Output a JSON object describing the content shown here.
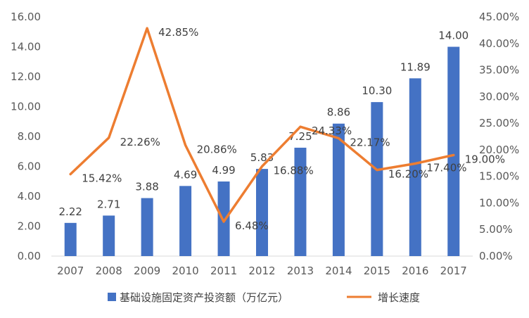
{
  "chart_data": {
    "type": "bar+line",
    "categories": [
      "2007",
      "2008",
      "2009",
      "2010",
      "2011",
      "2012",
      "2013",
      "2014",
      "2015",
      "2016",
      "2017"
    ],
    "series": [
      {
        "name": "基础设施固定资产投资额（万亿元）",
        "type": "bar",
        "axis": "left",
        "color": "#4472C4",
        "values": [
          2.22,
          2.71,
          3.88,
          4.69,
          4.99,
          5.83,
          7.25,
          8.86,
          10.3,
          11.89,
          14.0
        ],
        "labels": [
          "2.22",
          "2.71",
          "3.88",
          "4.69",
          "4.99",
          "5.83",
          "7.25",
          "8.86",
          "10.30",
          "11.89",
          "14.00"
        ]
      },
      {
        "name": "增长速度",
        "type": "line",
        "axis": "right",
        "color": "#ED7D31",
        "values": [
          15.42,
          22.26,
          42.85,
          20.86,
          6.48,
          16.88,
          24.33,
          22.17,
          16.2,
          17.4,
          19.0
        ],
        "labels": [
          "15.42%",
          "22.26%",
          "42.85%",
          "20.86%",
          "6.48%",
          "16.88%",
          "24.33%",
          "22.17%",
          "16.20%",
          "17.40%",
          "19.00%"
        ]
      }
    ],
    "y_left": {
      "min": 0,
      "max": 16,
      "ticks": [
        "0.00",
        "2.00",
        "4.00",
        "6.00",
        "8.00",
        "10.00",
        "12.00",
        "14.00",
        "16.00"
      ]
    },
    "y_right": {
      "min": 0,
      "max": 45,
      "ticks": [
        "0.00%",
        "5.00%",
        "10.00%",
        "15.00%",
        "20.00%",
        "25.00%",
        "30.00%",
        "35.00%",
        "40.00%",
        "45.00%"
      ]
    },
    "grid": false,
    "legend_position": "bottom"
  }
}
